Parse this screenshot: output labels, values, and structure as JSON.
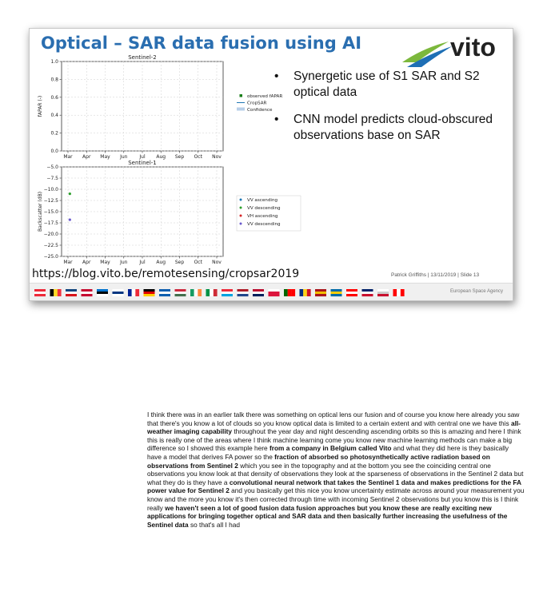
{
  "slide": {
    "title": "Optical – SAR data fusion using AI",
    "logo_text": "vito",
    "bullets": [
      "Synergetic use of S1 SAR and S2 optical data",
      "CNN model predicts cloud-obscured observations base on SAR"
    ],
    "url": "https://blog.vito.be/remotesensing/cropsar2019",
    "footer_meta": "Patrick Griffiths | 13/11/2019 | Slide  13",
    "agency": "European Space Agency",
    "colors": {
      "title": "#2a6eb0",
      "logo_text": "#222222",
      "logo_green": "#7cb83c",
      "logo_blue": "#1e6fb5"
    }
  },
  "chart_data": [
    {
      "type": "scatter",
      "title": "Sentinel-2",
      "xlabel": "",
      "ylabel": "fAPAR (-)",
      "ylim": [
        0,
        1.0
      ],
      "yticks": [
        "0.0",
        "0.2",
        "0.4",
        "0.6",
        "0.8",
        "1.0"
      ],
      "categories": [
        "Mar",
        "Apr",
        "May",
        "Jun",
        "Jul",
        "Aug",
        "Sep",
        "Oct",
        "Nov"
      ],
      "grid": true,
      "legend": "right",
      "series": [
        {
          "name": "observed fAPAR",
          "values": [],
          "color": "#1a7f1a"
        },
        {
          "name": "CropSAR",
          "values": [],
          "color": "#1f77b4"
        },
        {
          "name": "Confidence",
          "values": [],
          "color": "#b8cfe8"
        }
      ]
    },
    {
      "type": "scatter",
      "title": "Sentinel-1",
      "xlabel": "",
      "ylabel": "Backscatter (dB)",
      "ylim": [
        -25.0,
        -5.0
      ],
      "yticks": [
        "−5.0",
        "−7.5",
        "−10.0",
        "−12.5",
        "−15.0",
        "−17.5",
        "−20.0",
        "−22.5",
        "−25.0"
      ],
      "categories": [
        "Mar",
        "Apr",
        "May",
        "Jun",
        "Jul",
        "Aug",
        "Sep",
        "Oct",
        "Nov"
      ],
      "grid": true,
      "legend": "right",
      "series": [
        {
          "name": "VV ascending",
          "color": "#1f77b4",
          "points": []
        },
        {
          "name": "VV descending",
          "color": "#2ca02c",
          "points": [
            {
              "x": 0.1,
              "y": -11.0
            }
          ]
        },
        {
          "name": "VH ascending",
          "color": "#d62728",
          "points": []
        },
        {
          "name": "VV descending",
          "color": "#6a5acd",
          "points": [
            {
              "x": 0.1,
              "y": -16.8
            }
          ]
        }
      ]
    }
  ],
  "transcript": [
    {
      "b": false,
      "t": "I think there was in an  earlier talk there was something on optical lens our fusion and of course you know here already you saw that there's you know a lot of clouds so you know optical data is limited to a certain extent and with central one we have this "
    },
    {
      "b": true,
      "t": "all-weather imaging capability"
    },
    {
      "b": false,
      "t": " throughout the year day and night descending ascending orbits so this is amazing and here I think this is really one of the areas where I think machine learning come you know new machine learning methods can make a big difference so I showed this example here "
    },
    {
      "b": true,
      "t": "from a company in Belgium called Vito"
    },
    {
      "b": false,
      "t": " and what they did here is they basically have a model that derives FA power so the "
    },
    {
      "b": true,
      "t": "fraction of absorbed so photosynthetically active radiation based on observations from Sentinel 2"
    },
    {
      "b": false,
      "t": " which you see in the topography and at the bottom you see the coinciding central one observations you know look at that density of observations they look at the sparseness of observations in the Sentinel 2 data but what they do is they have a "
    },
    {
      "b": true,
      "t": "convolutional neural network that takes the Sentinel 1 data and makes predictions for the FA power value for Sentinel 2"
    },
    {
      "b": false,
      "t": " and you basically get this nice you know uncertainty estimate across around your measurement you know and the more you know it's then corrected through time with incoming Sentinel 2 observations but you know this is I think really "
    },
    {
      "b": true,
      "t": "we haven't seen a lot of good fusion data fusion approaches but you know these are really exciting new applications for bringing together optical and SAR data and then basically further increasing the usefulness of the Sentinel data"
    },
    {
      "b": false,
      "t": " so that's all I had"
    }
  ]
}
